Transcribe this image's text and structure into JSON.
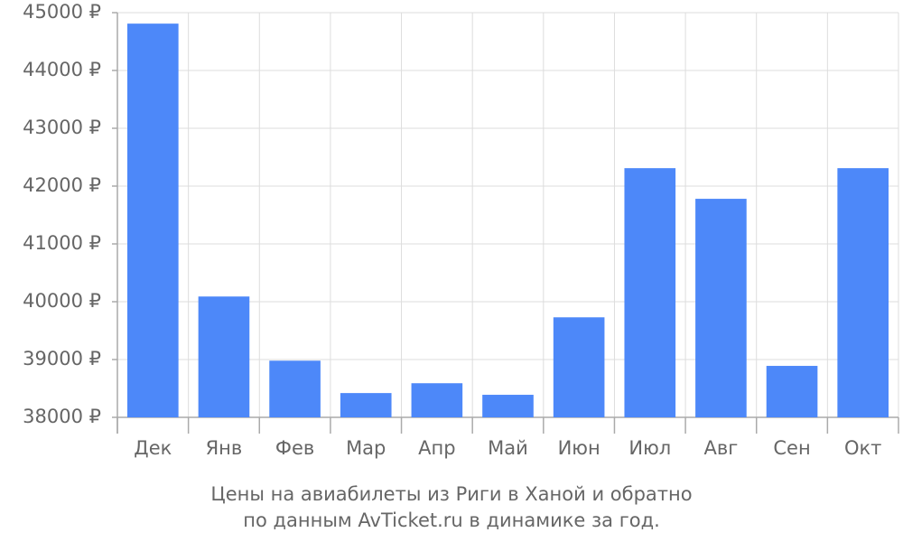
{
  "chart_data": {
    "type": "bar",
    "title": [
      "Цены на авиабилеты из Риги в Ханой и обратно",
      "по данным AvTicket.ru в динамике за год."
    ],
    "categories": [
      "Дек",
      "Янв",
      "Фев",
      "Мар",
      "Апр",
      "Май",
      "Июн",
      "Июл",
      "Авг",
      "Сен",
      "Окт"
    ],
    "values": [
      44810,
      40090,
      38980,
      38420,
      38590,
      38390,
      39730,
      42310,
      41780,
      38890,
      42310
    ],
    "color": "#4d88f9",
    "ylim": [
      38000,
      45000
    ],
    "yticks": [
      {
        "value": 38000,
        "label": "38000 ₽"
      },
      {
        "value": 39000,
        "label": "39000 ₽"
      },
      {
        "value": 40000,
        "label": "40000 ₽"
      },
      {
        "value": 41000,
        "label": "41000 ₽"
      },
      {
        "value": 42000,
        "label": "42000 ₽"
      },
      {
        "value": 43000,
        "label": "43000 ₽"
      },
      {
        "value": 44000,
        "label": "44000 ₽"
      },
      {
        "value": 45000,
        "label": "45000 ₽"
      }
    ],
    "grid": true
  }
}
